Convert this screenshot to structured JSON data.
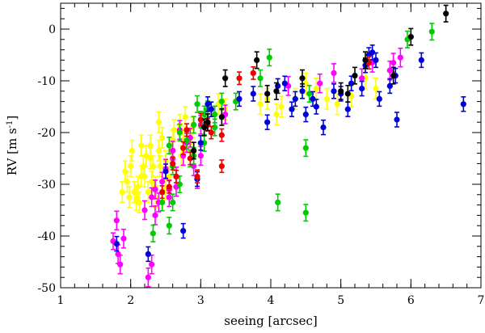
{
  "chart_data": {
    "type": "scatter",
    "xlabel": "seeing [arcsec]",
    "ylabel": "RV [m s",
    "ylabel_sup": "-1",
    "ylabel_end": "]",
    "xlim": [
      1,
      7
    ],
    "ylim": [
      -50,
      5
    ],
    "x_ticks": [
      1,
      2,
      3,
      4,
      5,
      6,
      7
    ],
    "y_ticks": [
      0,
      -10,
      -20,
      -30,
      -40,
      -50
    ],
    "x_minor_step": 0.2,
    "y_minor_step": 2,
    "grid": false,
    "legend": "none",
    "point_radius_px": 3.6,
    "series": [
      {
        "color": "#ffff00",
        "points": [
          [
            1.92,
            -27.5,
            2.0
          ],
          [
            2.0,
            -26.5,
            2.0
          ],
          [
            1.95,
            -29.5,
            2.0
          ],
          [
            2.05,
            -31.5,
            2.0
          ],
          [
            1.98,
            -32.5,
            2.0
          ],
          [
            2.1,
            -30.5,
            2.0
          ],
          [
            2.12,
            -33.5,
            2.0
          ],
          [
            2.18,
            -26.5,
            2.0
          ],
          [
            2.2,
            -28.5,
            2.0
          ],
          [
            2.15,
            -22.5,
            2.0
          ],
          [
            2.22,
            -24.5,
            2.0
          ],
          [
            2.28,
            -22.5,
            2.0
          ],
          [
            2.32,
            -26.5,
            2.0
          ],
          [
            2.3,
            -29.5,
            2.0
          ],
          [
            2.35,
            -32.5,
            2.0
          ],
          [
            2.4,
            -23.5,
            2.0
          ],
          [
            2.45,
            -21.0,
            2.0
          ],
          [
            2.5,
            -25.5,
            2.0
          ],
          [
            2.55,
            -28.5,
            2.0
          ],
          [
            2.62,
            -19.5,
            2.0
          ],
          [
            2.7,
            -18.5,
            2.0
          ],
          [
            2.75,
            -21.5,
            2.0
          ],
          [
            2.78,
            -17.0,
            2.0
          ],
          [
            2.85,
            -22.0,
            2.0
          ],
          [
            2.88,
            -19.0,
            2.0
          ],
          [
            2.72,
            -24.5,
            2.0
          ],
          [
            2.25,
            -31.5,
            2.0
          ],
          [
            2.08,
            -33.0,
            2.0
          ],
          [
            2.4,
            -18.0,
            2.0
          ],
          [
            2.6,
            -21.5,
            2.0
          ],
          [
            3.1,
            -16.0,
            2.0
          ],
          [
            3.25,
            -14.5,
            2.0
          ],
          [
            3.35,
            -15.5,
            2.0
          ],
          [
            3.85,
            -14.5,
            2.0
          ],
          [
            3.95,
            -13.5,
            2.0
          ],
          [
            4.08,
            -16.5,
            2.0
          ],
          [
            4.15,
            -15.0,
            2.0
          ],
          [
            4.35,
            -13.5,
            2.0
          ],
          [
            4.5,
            -10.5,
            2.0
          ],
          [
            4.65,
            -11.5,
            2.0
          ],
          [
            4.8,
            -13.5,
            2.0
          ],
          [
            4.95,
            -14.5,
            2.0
          ],
          [
            5.15,
            -13.0,
            2.0
          ],
          [
            5.5,
            -11.5,
            2.0
          ],
          [
            5.35,
            -9.5,
            2.0
          ],
          [
            2.42,
            -26.5,
            2.0
          ],
          [
            2.5,
            -31.0,
            2.0
          ],
          [
            2.58,
            -23.5,
            2.0
          ],
          [
            2.15,
            -28.5,
            2.0
          ],
          [
            2.28,
            -25.0,
            2.0
          ],
          [
            1.88,
            -31.5,
            2.0
          ],
          [
            2.02,
            -23.5,
            2.0
          ],
          [
            2.35,
            -30.5,
            2.0
          ]
        ]
      },
      {
        "color": "#ff00ff",
        "points": [
          [
            1.75,
            -41.0,
            1.6
          ],
          [
            1.8,
            -37.0,
            1.8
          ],
          [
            1.82,
            -43.5,
            1.8
          ],
          [
            1.85,
            -45.5,
            1.8
          ],
          [
            1.9,
            -40.5,
            1.8
          ],
          [
            2.25,
            -48.0,
            1.8
          ],
          [
            2.3,
            -45.5,
            1.8
          ],
          [
            2.3,
            -32.5,
            1.8
          ],
          [
            2.35,
            -31.0,
            1.8
          ],
          [
            2.4,
            -33.5,
            1.8
          ],
          [
            2.45,
            -29.5,
            1.8
          ],
          [
            2.5,
            -27.0,
            1.8
          ],
          [
            2.55,
            -31.0,
            1.8
          ],
          [
            2.6,
            -23.5,
            1.8
          ],
          [
            2.65,
            -28.5,
            1.8
          ],
          [
            2.75,
            -24.5,
            1.8
          ],
          [
            2.8,
            -22.0,
            1.8
          ],
          [
            2.9,
            -26.5,
            1.8
          ],
          [
            3.0,
            -24.5,
            1.8
          ],
          [
            2.95,
            -29.0,
            1.8
          ],
          [
            2.7,
            -19.5,
            1.8
          ],
          [
            2.85,
            -21.0,
            1.8
          ],
          [
            3.35,
            -16.5,
            1.8
          ],
          [
            4.25,
            -11.0,
            1.8
          ],
          [
            4.7,
            -10.5,
            1.8
          ],
          [
            4.9,
            -8.5,
            1.8
          ],
          [
            5.3,
            -9.5,
            1.8
          ],
          [
            5.45,
            -6.5,
            1.8
          ],
          [
            5.7,
            -8.0,
            1.8
          ],
          [
            5.75,
            -6.5,
            1.8
          ],
          [
            5.85,
            -5.5,
            1.8
          ],
          [
            2.35,
            -36.0,
            1.8
          ],
          [
            2.6,
            -25.0,
            1.8
          ],
          [
            2.65,
            -30.5,
            1.8
          ],
          [
            2.2,
            -35.0,
            1.8
          ],
          [
            2.55,
            -32.5,
            1.8
          ],
          [
            3.0,
            -18.5,
            1.8
          ]
        ]
      },
      {
        "color": "#00cc00",
        "points": [
          [
            2.32,
            -39.5,
            1.6
          ],
          [
            2.55,
            -38.0,
            1.6
          ],
          [
            2.6,
            -33.5,
            1.6
          ],
          [
            2.7,
            -30.0,
            1.6
          ],
          [
            2.6,
            -26.5,
            1.6
          ],
          [
            2.8,
            -21.5,
            1.6
          ],
          [
            2.9,
            -18.5,
            1.6
          ],
          [
            3.0,
            -17.5,
            1.6
          ],
          [
            3.05,
            -16.5,
            1.6
          ],
          [
            3.1,
            -15.5,
            1.6
          ],
          [
            3.2,
            -16.5,
            1.6
          ],
          [
            3.5,
            -14.0,
            1.6
          ],
          [
            3.85,
            -9.5,
            1.6
          ],
          [
            3.98,
            -5.5,
            1.6
          ],
          [
            4.1,
            -33.5,
            1.6
          ],
          [
            4.5,
            -35.5,
            1.6
          ],
          [
            4.5,
            -23.0,
            1.6
          ],
          [
            4.55,
            -12.5,
            1.6
          ],
          [
            5.95,
            -2.0,
            1.6
          ],
          [
            6.3,
            -0.5,
            1.6
          ],
          [
            2.9,
            -24.5,
            1.6
          ],
          [
            2.45,
            -33.5,
            1.6
          ],
          [
            3.3,
            -14.0,
            1.6
          ],
          [
            2.7,
            -20.0,
            1.6
          ],
          [
            3.05,
            -22.0,
            1.6
          ],
          [
            2.85,
            -25.0,
            1.6
          ],
          [
            2.55,
            -22.5,
            1.6
          ],
          [
            2.95,
            -14.5,
            1.6
          ],
          [
            3.2,
            -19.0,
            1.6
          ]
        ]
      },
      {
        "color": "#0000dd",
        "points": [
          [
            1.8,
            -41.5,
            1.4
          ],
          [
            2.25,
            -43.5,
            1.4
          ],
          [
            2.75,
            -39.0,
            1.4
          ],
          [
            2.5,
            -27.5,
            1.4
          ],
          [
            3.1,
            -14.5,
            1.4
          ],
          [
            3.15,
            -15.5,
            1.4
          ],
          [
            3.55,
            -13.5,
            1.4
          ],
          [
            3.75,
            -12.5,
            1.4
          ],
          [
            3.95,
            -18.0,
            1.4
          ],
          [
            4.1,
            -11.0,
            1.4
          ],
          [
            4.2,
            -10.5,
            1.4
          ],
          [
            4.3,
            -15.5,
            1.4
          ],
          [
            4.35,
            -13.5,
            1.4
          ],
          [
            4.45,
            -12.0,
            1.4
          ],
          [
            4.5,
            -16.5,
            1.4
          ],
          [
            4.6,
            -13.5,
            1.4
          ],
          [
            4.65,
            -15.0,
            1.4
          ],
          [
            4.75,
            -19.0,
            1.4
          ],
          [
            4.9,
            -12.0,
            1.4
          ],
          [
            5.0,
            -12.5,
            1.4
          ],
          [
            5.1,
            -15.5,
            1.4
          ],
          [
            5.15,
            -10.5,
            1.4
          ],
          [
            5.3,
            -11.5,
            1.4
          ],
          [
            5.35,
            -7.0,
            1.4
          ],
          [
            5.4,
            -5.0,
            1.4
          ],
          [
            5.5,
            -6.0,
            1.4
          ],
          [
            5.55,
            -13.5,
            1.4
          ],
          [
            5.7,
            -11.0,
            1.4
          ],
          [
            5.78,
            -9.0,
            1.4
          ],
          [
            5.8,
            -17.5,
            1.4
          ],
          [
            6.15,
            -6.0,
            1.4
          ],
          [
            6.75,
            -14.5,
            1.4
          ],
          [
            5.45,
            -4.5,
            1.4
          ],
          [
            2.95,
            -29.0,
            1.4
          ],
          [
            3.0,
            -22.0,
            1.4
          ]
        ]
      },
      {
        "color": "#ee0000",
        "points": [
          [
            2.6,
            -26.0,
            1.2
          ],
          [
            2.55,
            -30.5,
            1.2
          ],
          [
            2.65,
            -28.5,
            1.2
          ],
          [
            2.75,
            -23.0,
            1.2
          ],
          [
            2.8,
            -19.5,
            1.2
          ],
          [
            2.85,
            -25.0,
            1.2
          ],
          [
            2.95,
            -28.5,
            1.2
          ],
          [
            3.0,
            -17.5,
            1.2
          ],
          [
            3.1,
            -18.5,
            1.2
          ],
          [
            3.15,
            -20.0,
            1.2
          ],
          [
            3.3,
            -20.5,
            1.2
          ],
          [
            3.3,
            -26.5,
            1.2
          ],
          [
            3.55,
            -9.5,
            1.2
          ],
          [
            3.75,
            -8.5,
            1.2
          ],
          [
            2.45,
            -31.5,
            1.2
          ],
          [
            5.4,
            -6.5,
            1.2
          ]
        ]
      },
      {
        "color": "#000000",
        "points": [
          [
            3.05,
            -19.0,
            1.6
          ],
          [
            3.1,
            -18.0,
            1.6
          ],
          [
            3.35,
            -9.5,
            1.6
          ],
          [
            3.8,
            -6.0,
            1.6
          ],
          [
            3.95,
            -12.5,
            1.6
          ],
          [
            4.08,
            -12.0,
            1.6
          ],
          [
            4.45,
            -9.5,
            1.6
          ],
          [
            5.0,
            -12.0,
            1.6
          ],
          [
            5.1,
            -12.5,
            1.6
          ],
          [
            5.2,
            -9.0,
            1.6
          ],
          [
            5.35,
            -6.0,
            1.6
          ],
          [
            5.75,
            -9.0,
            1.6
          ],
          [
            6.0,
            -1.5,
            1.6
          ],
          [
            6.5,
            3.0,
            1.6
          ],
          [
            3.3,
            -17.0,
            1.6
          ],
          [
            2.9,
            -23.5,
            1.6
          ]
        ]
      }
    ]
  }
}
